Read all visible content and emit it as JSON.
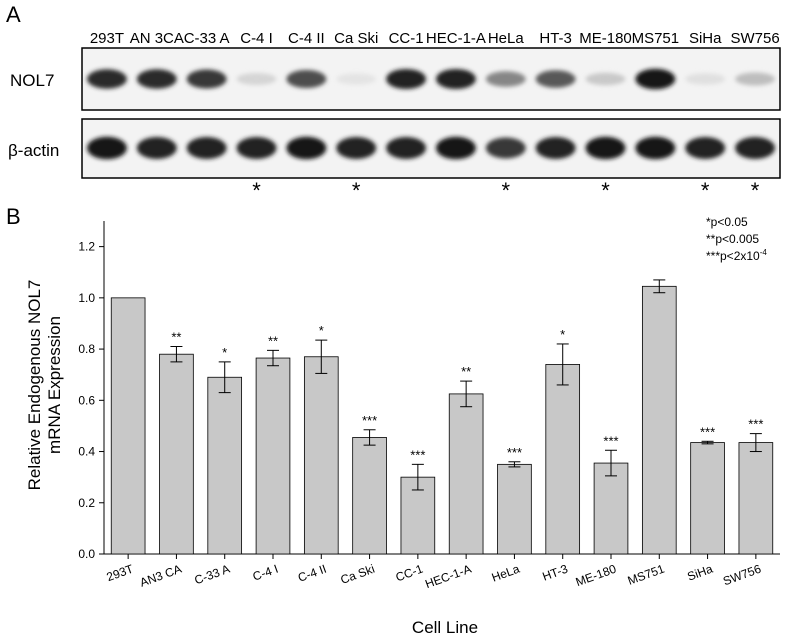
{
  "panels": {
    "a": "A",
    "b": "B"
  },
  "blot": {
    "lanes": [
      "293T",
      "AN 3CA",
      "C-33 A",
      "C-4 I",
      "C-4 II",
      "Ca Ski",
      "CC-1",
      "HEC-1-A",
      "HeLa",
      "HT-3",
      "ME-180",
      "MS751",
      "SiHa",
      "SW756"
    ],
    "rows": [
      {
        "label": "NOL7",
        "intensity": [
          0.85,
          0.85,
          0.8,
          0.1,
          0.7,
          0.03,
          0.9,
          0.9,
          0.45,
          0.65,
          0.15,
          0.95,
          0.05,
          0.2
        ]
      },
      {
        "label": "β-actin",
        "intensity": [
          0.95,
          0.9,
          0.9,
          0.9,
          0.95,
          0.9,
          0.9,
          0.95,
          0.8,
          0.9,
          0.95,
          0.95,
          0.9,
          0.9
        ]
      }
    ],
    "stars": [
      "",
      "",
      "",
      "*",
      "",
      "*",
      "",
      "",
      "*",
      "",
      "*",
      "",
      "*",
      "*"
    ]
  },
  "chart_data": {
    "type": "bar",
    "categories": [
      "293T",
      "AN3 CA",
      "C-33 A",
      "C-4 I",
      "C-4 II",
      "Ca Ski",
      "CC-1",
      "HEC-1-A",
      "HeLa",
      "HT-3",
      "ME-180",
      "MS751",
      "SiHa",
      "SW756"
    ],
    "values": [
      1.0,
      0.78,
      0.69,
      0.765,
      0.77,
      0.455,
      0.3,
      0.625,
      0.35,
      0.74,
      0.355,
      1.045,
      0.435,
      0.435
    ],
    "errors": [
      0,
      0.03,
      0.06,
      0.03,
      0.065,
      0.03,
      0.05,
      0.05,
      0.01,
      0.08,
      0.05,
      0.025,
      0.005,
      0.035
    ],
    "significance": [
      "",
      "**",
      "*",
      "**",
      "*",
      "***",
      "***",
      "**",
      "***",
      "*",
      "***",
      "",
      "***",
      "***"
    ],
    "ylabel_line1": "Relative Endogenous NOL7",
    "ylabel_line2": "mRNA Expression",
    "xlabel": "Cell Line",
    "ylim": [
      0.0,
      1.3
    ],
    "yticks": [
      "0.0",
      "0.2",
      "0.4",
      "0.6",
      "0.8",
      "1.0",
      "1.2"
    ],
    "bar_color": "#c8c8c8",
    "legend": [
      "*p<0.05",
      "**p<0.005"
    ],
    "legend_third_prefix": "***p<2x10",
    "legend_third_exp": "-4"
  }
}
